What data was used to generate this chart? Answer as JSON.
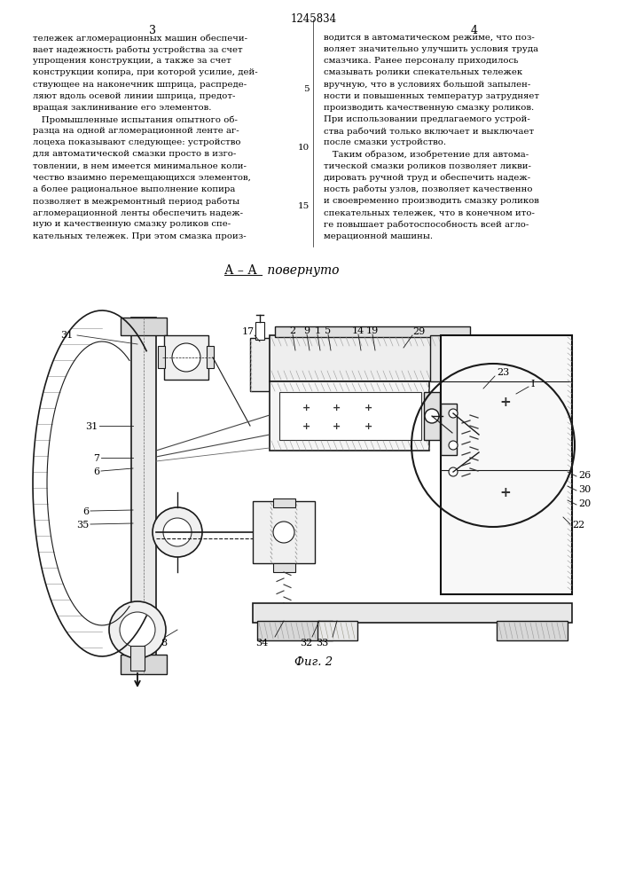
{
  "page_number_center": "1245834",
  "col_left_number": "3",
  "col_right_number": "4",
  "background_color": "#ffffff",
  "text_color": "#000000",
  "text_col_left": [
    "тележек агломерационных машин обеспечи-",
    "вает надежность работы устройства за счет",
    "упрощения конструкции, а также за счет",
    "конструкции копира, при которой усилие, дей-",
    "ствующее на наконечник шприца, распреде-",
    "ляют вдоль осевой линии шприца, предот-",
    "вращая заклинивание его элементов.",
    "   Промышленные испытания опытного об-",
    "разца на одной агломерационной ленте аг-",
    "лоцеха показывают следующее: устройство",
    "для автоматической смазки просто в изго-",
    "товлении, в нем имеется минимальное коли-",
    "чество взаимно перемещающихся элементов,",
    "а более рациональное выполнение копира",
    "позволяет в межремонтный период работы",
    "агломерационной ленты обеспечить надеж-",
    "ную и качественную смазку роликов спе-",
    "кательных тележек. При этом смазка произ-"
  ],
  "text_col_right": [
    "водится в автоматическом режиме, что поз-",
    "воляет значительно улучшить условия труда",
    "смазчика. Ранее персоналу приходилось",
    "смазывать ролики спекательных тележек",
    "вручную, что в условиях большой запылен-",
    "ности и повышенных температур затрудняет",
    "производить качественную смазку роликов.",
    "При использовании предлагаемого устрой-",
    "ства рабочий только включает и выключает",
    "после смазки устройство.",
    "   Таким образом, изобретение для автома-",
    "тической смазки роликов позволяет ликви-",
    "дировать ручной труд и обеспечить надеж-",
    "ность работы узлов, позволяет качественно",
    "и своевременно производить смазку роликов",
    "спекательных тележек, что в конечном ито-",
    "ге повышает работоспособность всей агло-",
    "мерационной машины."
  ],
  "fig_label": "Фиг. 2",
  "section_label_aa": "А – А",
  "section_label_turned": " повернуто"
}
